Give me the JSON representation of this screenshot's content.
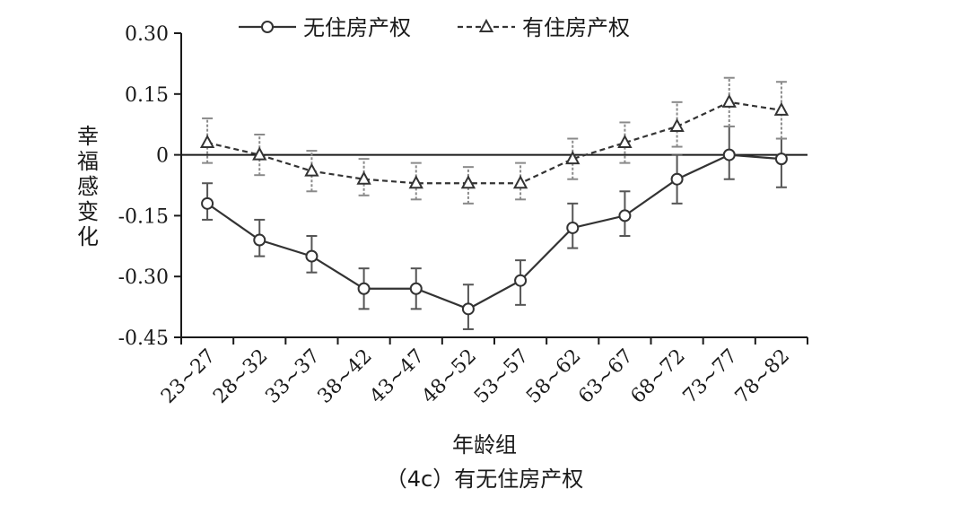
{
  "chart_data": {
    "type": "line",
    "categories": [
      "23~27",
      "28~32",
      "33~37",
      "38~42",
      "43~47",
      "48~52",
      "53~57",
      "58~62",
      "63~67",
      "68~72",
      "73~77",
      "78~82"
    ],
    "xlabel": "年龄组",
    "ylabel": "幸福感变化",
    "caption": "（4c）有无住房产权",
    "ylim": [
      -0.45,
      0.3
    ],
    "yticks": [
      0.3,
      0.15,
      0,
      -0.15,
      -0.3,
      -0.45
    ],
    "ytick_labels": [
      "0.30",
      "0.15",
      "0",
      "-0.15",
      "-0.30",
      "-0.45"
    ],
    "reference_line": 0,
    "legend_position": "top",
    "series": [
      {
        "name": "无住房产权",
        "style": "solid",
        "marker": "circle",
        "color": "#333333",
        "values": [
          -0.12,
          -0.21,
          -0.25,
          -0.33,
          -0.33,
          -0.38,
          -0.31,
          -0.18,
          -0.15,
          -0.06,
          0.0,
          -0.01
        ],
        "lower": [
          -0.16,
          -0.25,
          -0.29,
          -0.38,
          -0.38,
          -0.43,
          -0.37,
          -0.23,
          -0.2,
          -0.12,
          -0.06,
          -0.08
        ],
        "upper": [
          -0.07,
          -0.16,
          -0.2,
          -0.28,
          -0.28,
          -0.32,
          -0.26,
          -0.12,
          -0.09,
          0.0,
          0.07,
          0.04
        ]
      },
      {
        "name": "有住房产权",
        "style": "dashed",
        "marker": "triangle",
        "color": "#333333",
        "values": [
          0.03,
          0.0,
          -0.04,
          -0.06,
          -0.07,
          -0.07,
          -0.07,
          -0.01,
          0.03,
          0.07,
          0.13,
          0.11
        ],
        "lower": [
          -0.02,
          -0.05,
          -0.09,
          -0.1,
          -0.11,
          -0.12,
          -0.11,
          -0.06,
          -0.02,
          0.02,
          0.07,
          0.04
        ],
        "upper": [
          0.09,
          0.05,
          0.01,
          -0.01,
          -0.02,
          -0.03,
          -0.02,
          0.04,
          0.08,
          0.13,
          0.19,
          0.18
        ]
      }
    ]
  }
}
